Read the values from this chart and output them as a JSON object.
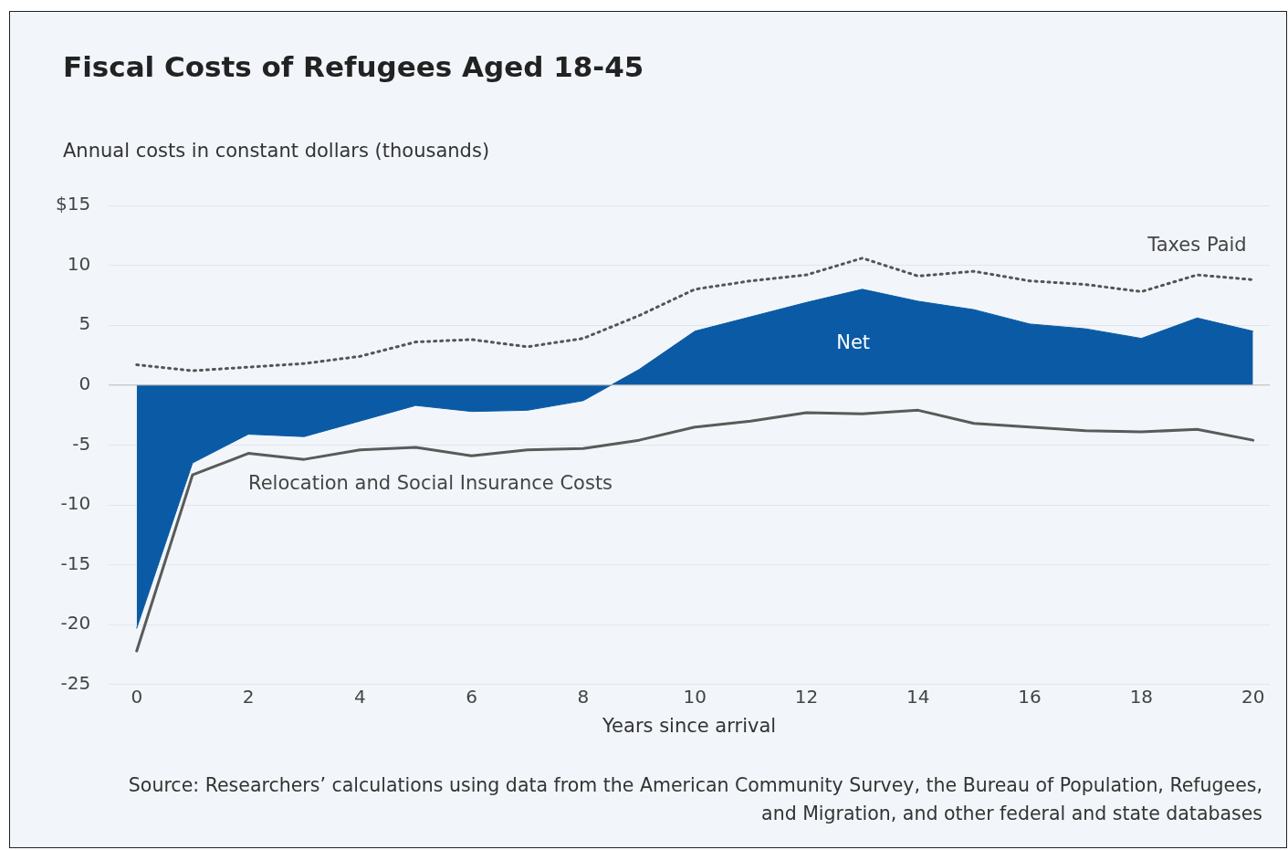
{
  "chart_data": {
    "type": "line",
    "title": "Fiscal Costs of Refugees Aged 18-45",
    "ylabel": "Annual costs in constant dollars (thousands)",
    "xlabel": "Years since arrival",
    "x": [
      0,
      1,
      2,
      3,
      4,
      5,
      6,
      7,
      8,
      9,
      10,
      11,
      12,
      13,
      14,
      15,
      16,
      17,
      18,
      19,
      20
    ],
    "series": [
      {
        "name": "Taxes Paid",
        "line_style": "dotted",
        "color": "#555555",
        "values": [
          1.7,
          1.2,
          1.5,
          1.8,
          2.4,
          3.6,
          3.8,
          3.2,
          3.9,
          5.8,
          8.0,
          8.7,
          9.2,
          10.6,
          9.1,
          9.5,
          8.7,
          8.4,
          7.8,
          9.2,
          8.8
        ]
      },
      {
        "name": "Net",
        "type": "area",
        "color": "#0a5aa5",
        "values": [
          -20.3,
          -6.5,
          -4.1,
          -4.3,
          -3.0,
          -1.7,
          -2.2,
          -2.1,
          -1.3,
          1.3,
          4.5,
          5.7,
          6.9,
          8.0,
          7.0,
          6.3,
          5.1,
          4.7,
          3.9,
          5.6,
          4.5
        ]
      },
      {
        "name": "Relocation and Social Insurance Costs",
        "line_style": "solid",
        "color": "#5a5a5a",
        "values": [
          -22.2,
          -7.5,
          -5.7,
          -6.2,
          -5.4,
          -5.2,
          -5.9,
          -5.4,
          -5.3,
          -4.6,
          -3.5,
          -3.0,
          -2.3,
          -2.4,
          -2.1,
          -3.2,
          -3.5,
          -3.8,
          -3.9,
          -3.7,
          -4.6
        ]
      }
    ],
    "xlim": [
      -0.5,
      20.3
    ],
    "xticks": [
      0,
      2,
      4,
      6,
      8,
      10,
      12,
      14,
      16,
      18,
      20
    ],
    "ylim": [
      -25,
      15
    ],
    "yticks": [
      -25,
      -20,
      -15,
      -10,
      -5,
      0,
      5,
      10,
      {
        "value": 15,
        "label": "$15"
      }
    ],
    "grid": "y",
    "legend": false,
    "marker": "none",
    "annotations": [
      "Source: Researchers’ calculations using data from the American Community Survey, the Bureau of Population, Refugees, and Migration, and other federal and state databases"
    ]
  }
}
